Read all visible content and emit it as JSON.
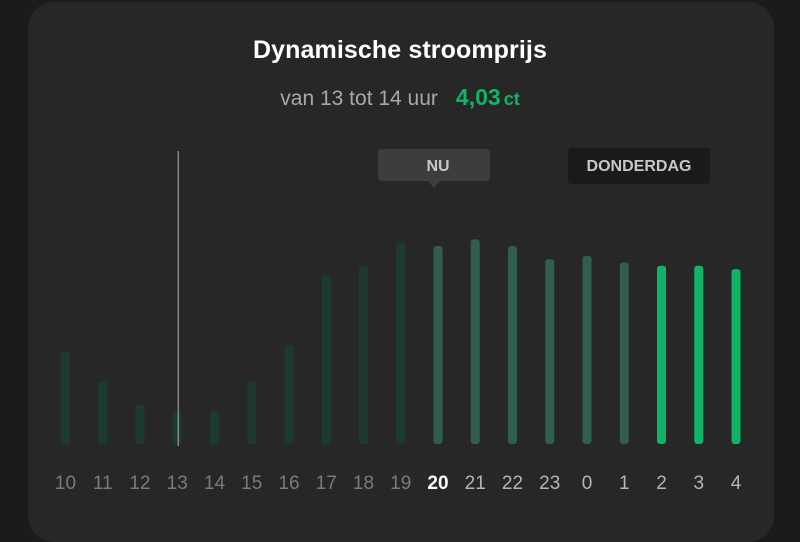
{
  "header": {
    "title": "Dynamische stroomprijs",
    "period": "van 13 tot 14 uur",
    "price": "4,03",
    "unit": "ct"
  },
  "markers": {
    "now_label": "NU",
    "day_label": "DONDERDAG"
  },
  "colors": {
    "background": "#1b1b1b",
    "card": "#272727",
    "accent": "#10b466",
    "bar_past": "#1c3a2d",
    "bar_future": "#325f4d",
    "bar_highlight": "#10b466"
  },
  "chart_data": {
    "type": "bar",
    "categories": [
      "10",
      "11",
      "12",
      "13",
      "14",
      "15",
      "16",
      "17",
      "18",
      "19",
      "20",
      "21",
      "22",
      "23",
      "0",
      "1",
      "2",
      "3",
      "4"
    ],
    "values": [
      28,
      19,
      12,
      10,
      10,
      19,
      30,
      51,
      54,
      61,
      60,
      62,
      60,
      56,
      57,
      55,
      54,
      54,
      53
    ],
    "past_count": 10,
    "current_index": 10,
    "highlight_indices": [
      16,
      17,
      18
    ],
    "day_change_index": 14,
    "selected_index": 3,
    "ylim": [
      0,
      80
    ]
  }
}
